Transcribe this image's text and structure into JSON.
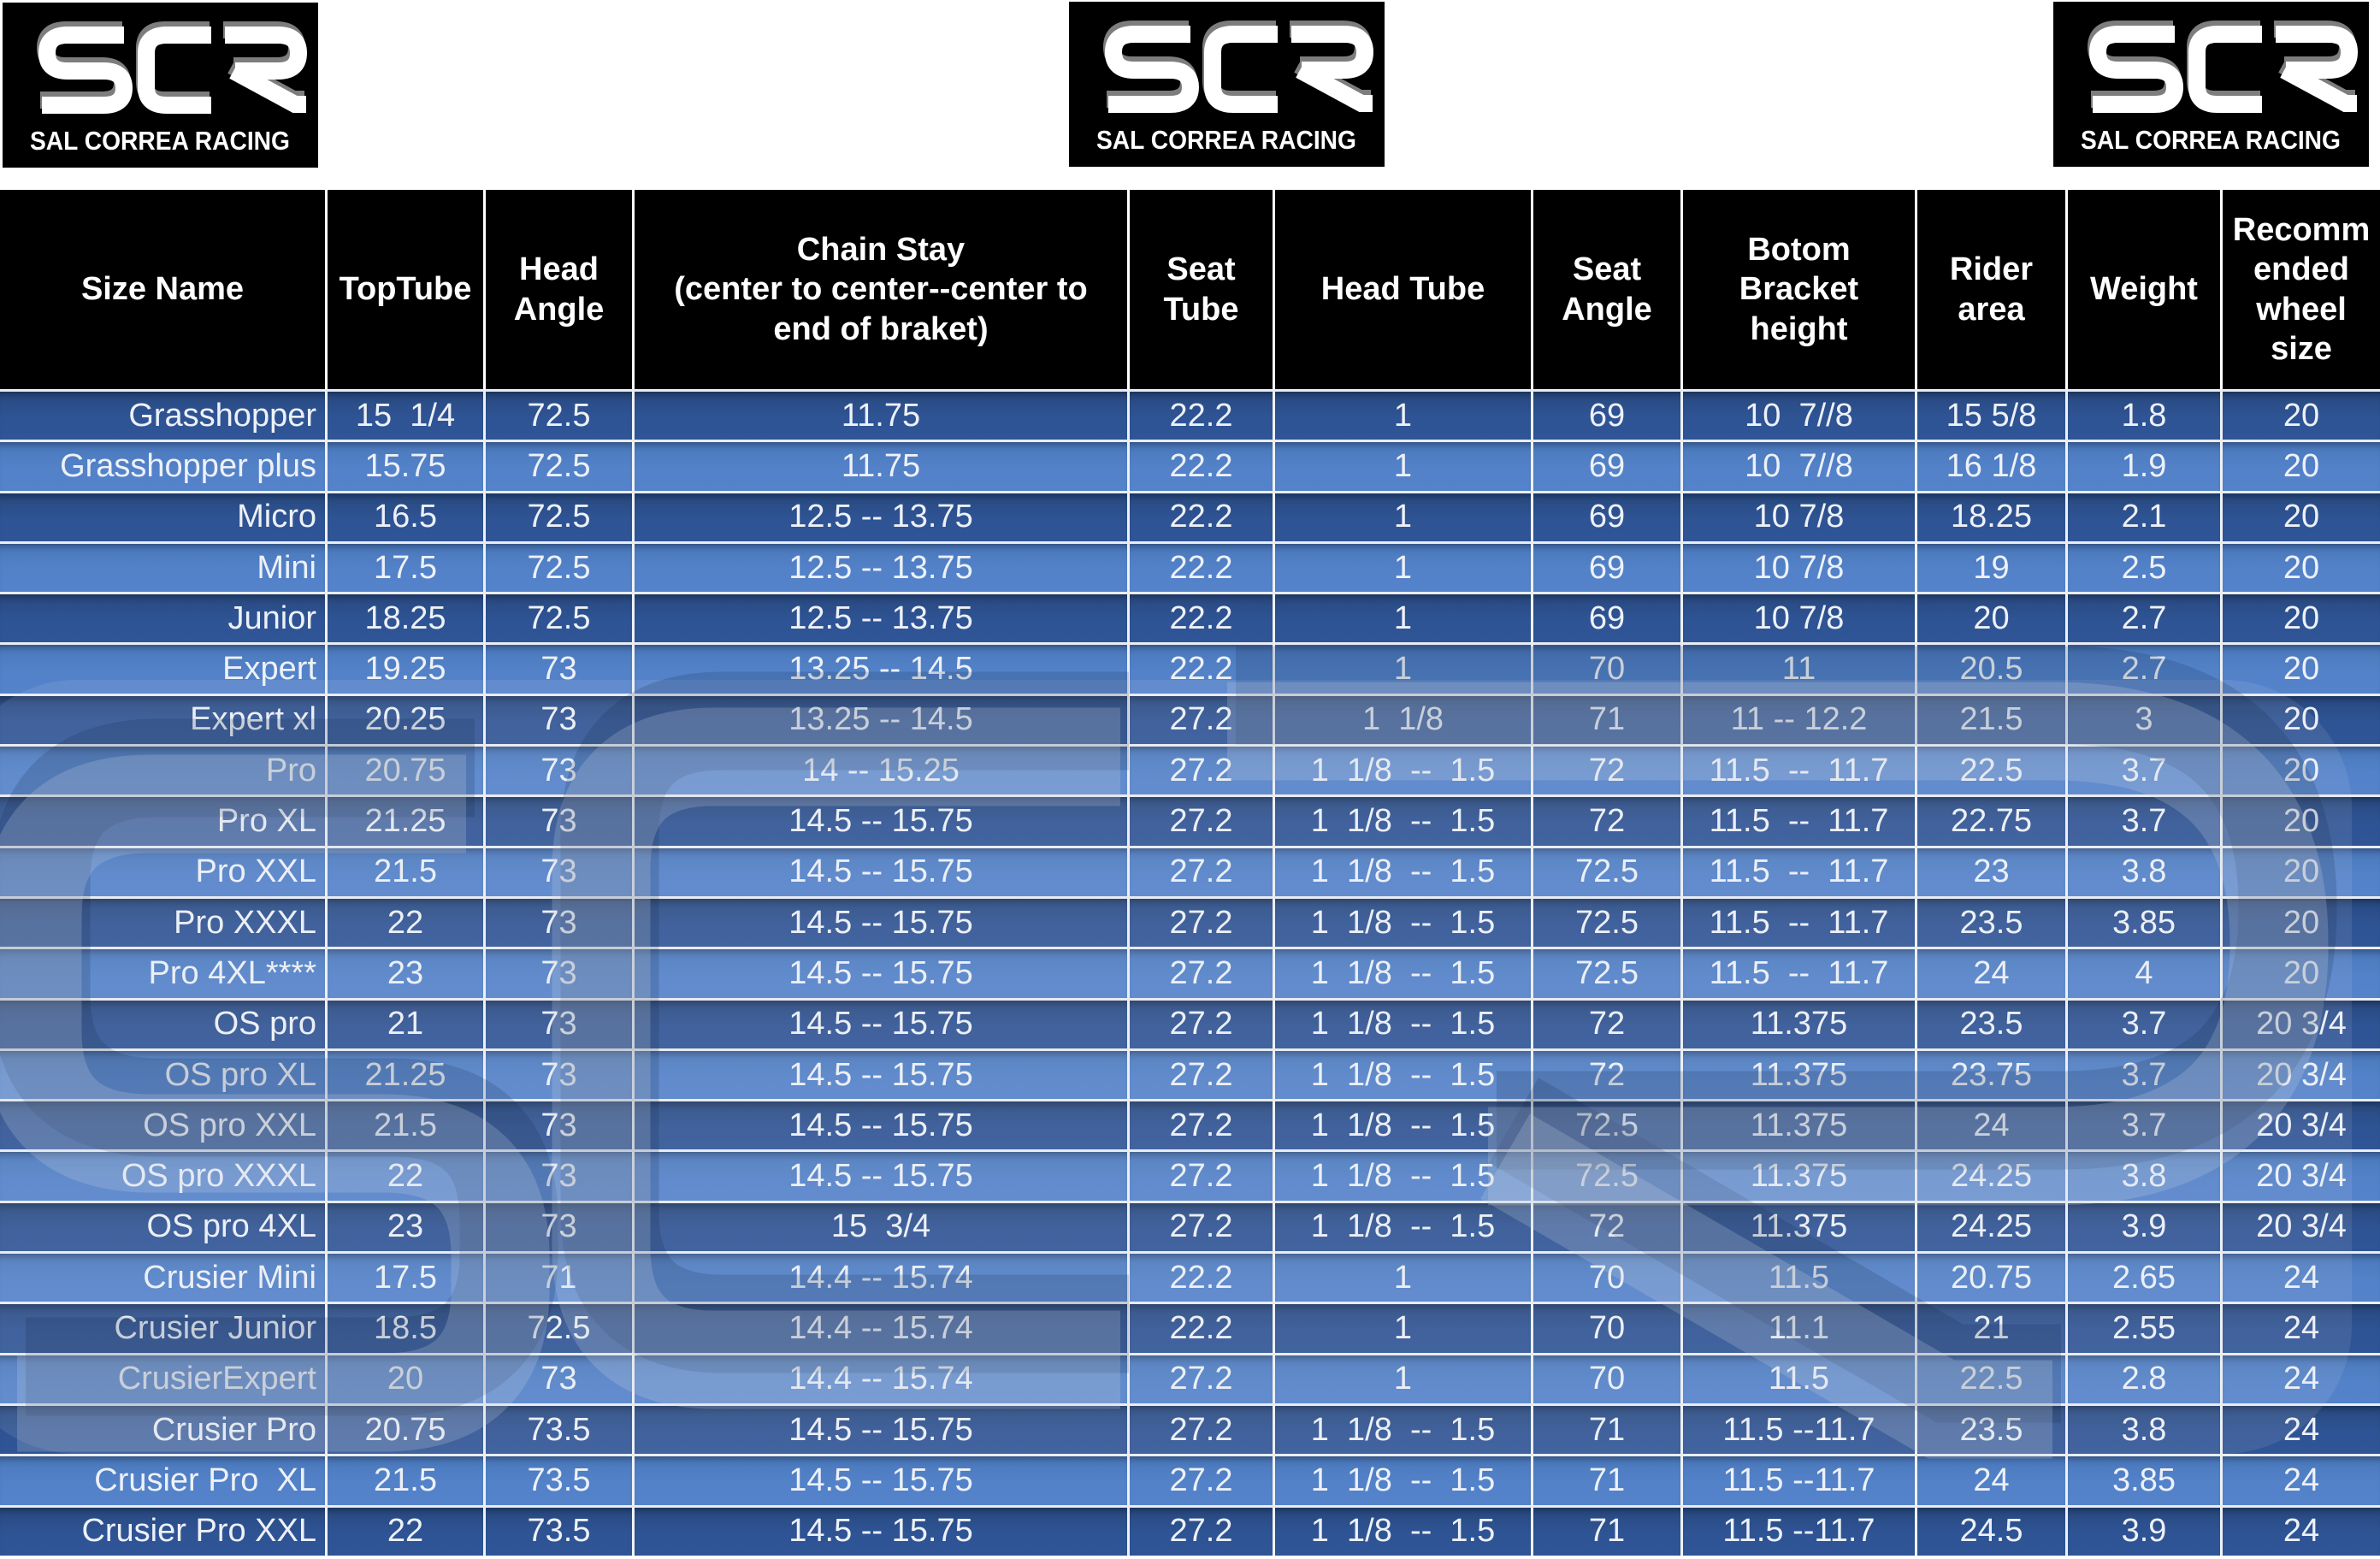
{
  "logo": {
    "brand": "SCR",
    "subtitle": "SAL CORREA RACING"
  },
  "colors": {
    "header_bg": "#000000",
    "header_text": "#ffffff",
    "row_dark": "#2f5495",
    "row_light": "#5382c9",
    "cell_text": "#edf1f7",
    "border": "#ffffff",
    "watermark_light": "#ccd5e2",
    "watermark_dark": "#0e1f40"
  },
  "table": {
    "columns": [
      {
        "label": "Size Name"
      },
      {
        "label": "TopTube"
      },
      {
        "label": "Head\nAngle"
      },
      {
        "label": "Chain Stay\n(center to center--center to\nend of braket)"
      },
      {
        "label": "Seat\nTube"
      },
      {
        "label": "Head Tube"
      },
      {
        "label": "Seat\nAngle"
      },
      {
        "label": "Botom\nBracket\nheight"
      },
      {
        "label": "Rider\narea"
      },
      {
        "label": "Weight"
      },
      {
        "label": "Recomm\nended\nwheel\nsize"
      }
    ],
    "rows": [
      [
        "Grasshopper",
        "15  1/4",
        "72.5",
        "11.75",
        "22.2",
        "1",
        "69",
        "10  7//8",
        "15 5/8",
        "1.8",
        "20"
      ],
      [
        "Grasshopper plus",
        "15.75",
        "72.5",
        "11.75",
        "22.2",
        "1",
        "69",
        "10  7//8",
        "16 1/8",
        "1.9",
        "20"
      ],
      [
        "Micro",
        "16.5",
        "72.5",
        "12.5 -- 13.75",
        "22.2",
        "1",
        "69",
        "10 7/8",
        "18.25",
        "2.1",
        "20"
      ],
      [
        "Mini",
        "17.5",
        "72.5",
        "12.5 -- 13.75",
        "22.2",
        "1",
        "69",
        "10 7/8",
        "19",
        "2.5",
        "20"
      ],
      [
        "Junior",
        "18.25",
        "72.5",
        "12.5 -- 13.75",
        "22.2",
        "1",
        "69",
        "10 7/8",
        "20",
        "2.7",
        "20"
      ],
      [
        "Expert",
        "19.25",
        "73",
        "13.25 -- 14.5",
        "22.2",
        "1",
        "70",
        "11",
        "20.5",
        "2.7",
        "20"
      ],
      [
        "Expert xl",
        "20.25",
        "73",
        "13.25 -- 14.5",
        "27.2",
        "1  1/8",
        "71",
        "11 -- 12.2",
        "21.5",
        "3",
        "20"
      ],
      [
        "Pro",
        "20.75",
        "73",
        "14 -- 15.25",
        "27.2",
        "1  1/8  --  1.5",
        "72",
        "11.5  --  11.7",
        "22.5",
        "3.7",
        "20"
      ],
      [
        "Pro XL",
        "21.25",
        "73",
        "14.5 -- 15.75",
        "27.2",
        "1  1/8  --  1.5",
        "72",
        "11.5  --  11.7",
        "22.75",
        "3.7",
        "20"
      ],
      [
        "Pro XXL",
        "21.5",
        "73",
        "14.5 -- 15.75",
        "27.2",
        "1  1/8  --  1.5",
        "72.5",
        "11.5  --  11.7",
        "23",
        "3.8",
        "20"
      ],
      [
        "Pro XXXL",
        "22",
        "73",
        "14.5 -- 15.75",
        "27.2",
        "1  1/8  --  1.5",
        "72.5",
        "11.5  --  11.7",
        "23.5",
        "3.85",
        "20"
      ],
      [
        "Pro 4XL****",
        "23",
        "73",
        "14.5 -- 15.75",
        "27.2",
        "1  1/8  --  1.5",
        "72.5",
        "11.5  --  11.7",
        "24",
        "4",
        "20"
      ],
      [
        "OS pro",
        "21",
        "73",
        "14.5 -- 15.75",
        "27.2",
        "1  1/8  --  1.5",
        "72",
        "11.375",
        "23.5",
        "3.7",
        "20 3/4"
      ],
      [
        "OS pro XL",
        "21.25",
        "73",
        "14.5 -- 15.75",
        "27.2",
        "1  1/8  --  1.5",
        "72",
        "11.375",
        "23.75",
        "3.7",
        "20 3/4"
      ],
      [
        "OS pro XXL",
        "21.5",
        "73",
        "14.5 -- 15.75",
        "27.2",
        "1  1/8  --  1.5",
        "72.5",
        "11.375",
        "24",
        "3.7",
        "20 3/4"
      ],
      [
        "OS pro XXXL",
        "22",
        "73",
        "14.5 -- 15.75",
        "27.2",
        "1  1/8  --  1.5",
        "72.5",
        "11.375",
        "24.25",
        "3.8",
        "20 3/4"
      ],
      [
        "OS pro 4XL",
        "23",
        "73",
        "15  3/4",
        "27.2",
        "1  1/8  --  1.5",
        "72",
        "11.375",
        "24.25",
        "3.9",
        "20 3/4"
      ],
      [
        "Crusier Mini",
        "17.5",
        "71",
        "14.4 -- 15.74",
        "22.2",
        "1",
        "70",
        "11.5",
        "20.75",
        "2.65",
        "24"
      ],
      [
        "Crusier Junior",
        "18.5",
        "72.5",
        "14.4 -- 15.74",
        "22.2",
        "1",
        "70",
        "11.1",
        "21",
        "2.55",
        "24"
      ],
      [
        "CrusierExpert",
        "20",
        "73",
        "14.4 -- 15.74",
        "27.2",
        "1",
        "70",
        "11.5",
        "22.5",
        "2.8",
        "24"
      ],
      [
        "Crusier Pro",
        "20.75",
        "73.5",
        "14.5 -- 15.75",
        "27.2",
        "1  1/8  --  1.5",
        "71",
        "11.5 --11.7",
        "23.5",
        "3.8",
        "24"
      ],
      [
        "Crusier Pro  XL",
        "21.5",
        "73.5",
        "14.5 -- 15.75",
        "27.2",
        "1  1/8  --  1.5",
        "71",
        "11.5 --11.7",
        "24",
        "3.85",
        "24"
      ],
      [
        "Crusier Pro XXL",
        "22",
        "73.5",
        "14.5 -- 15.75",
        "27.2",
        "1  1/8  --  1.5",
        "71",
        "11.5 --11.7",
        "24.5",
        "3.9",
        "24"
      ]
    ]
  },
  "watermark": {
    "brand": "SCR"
  }
}
